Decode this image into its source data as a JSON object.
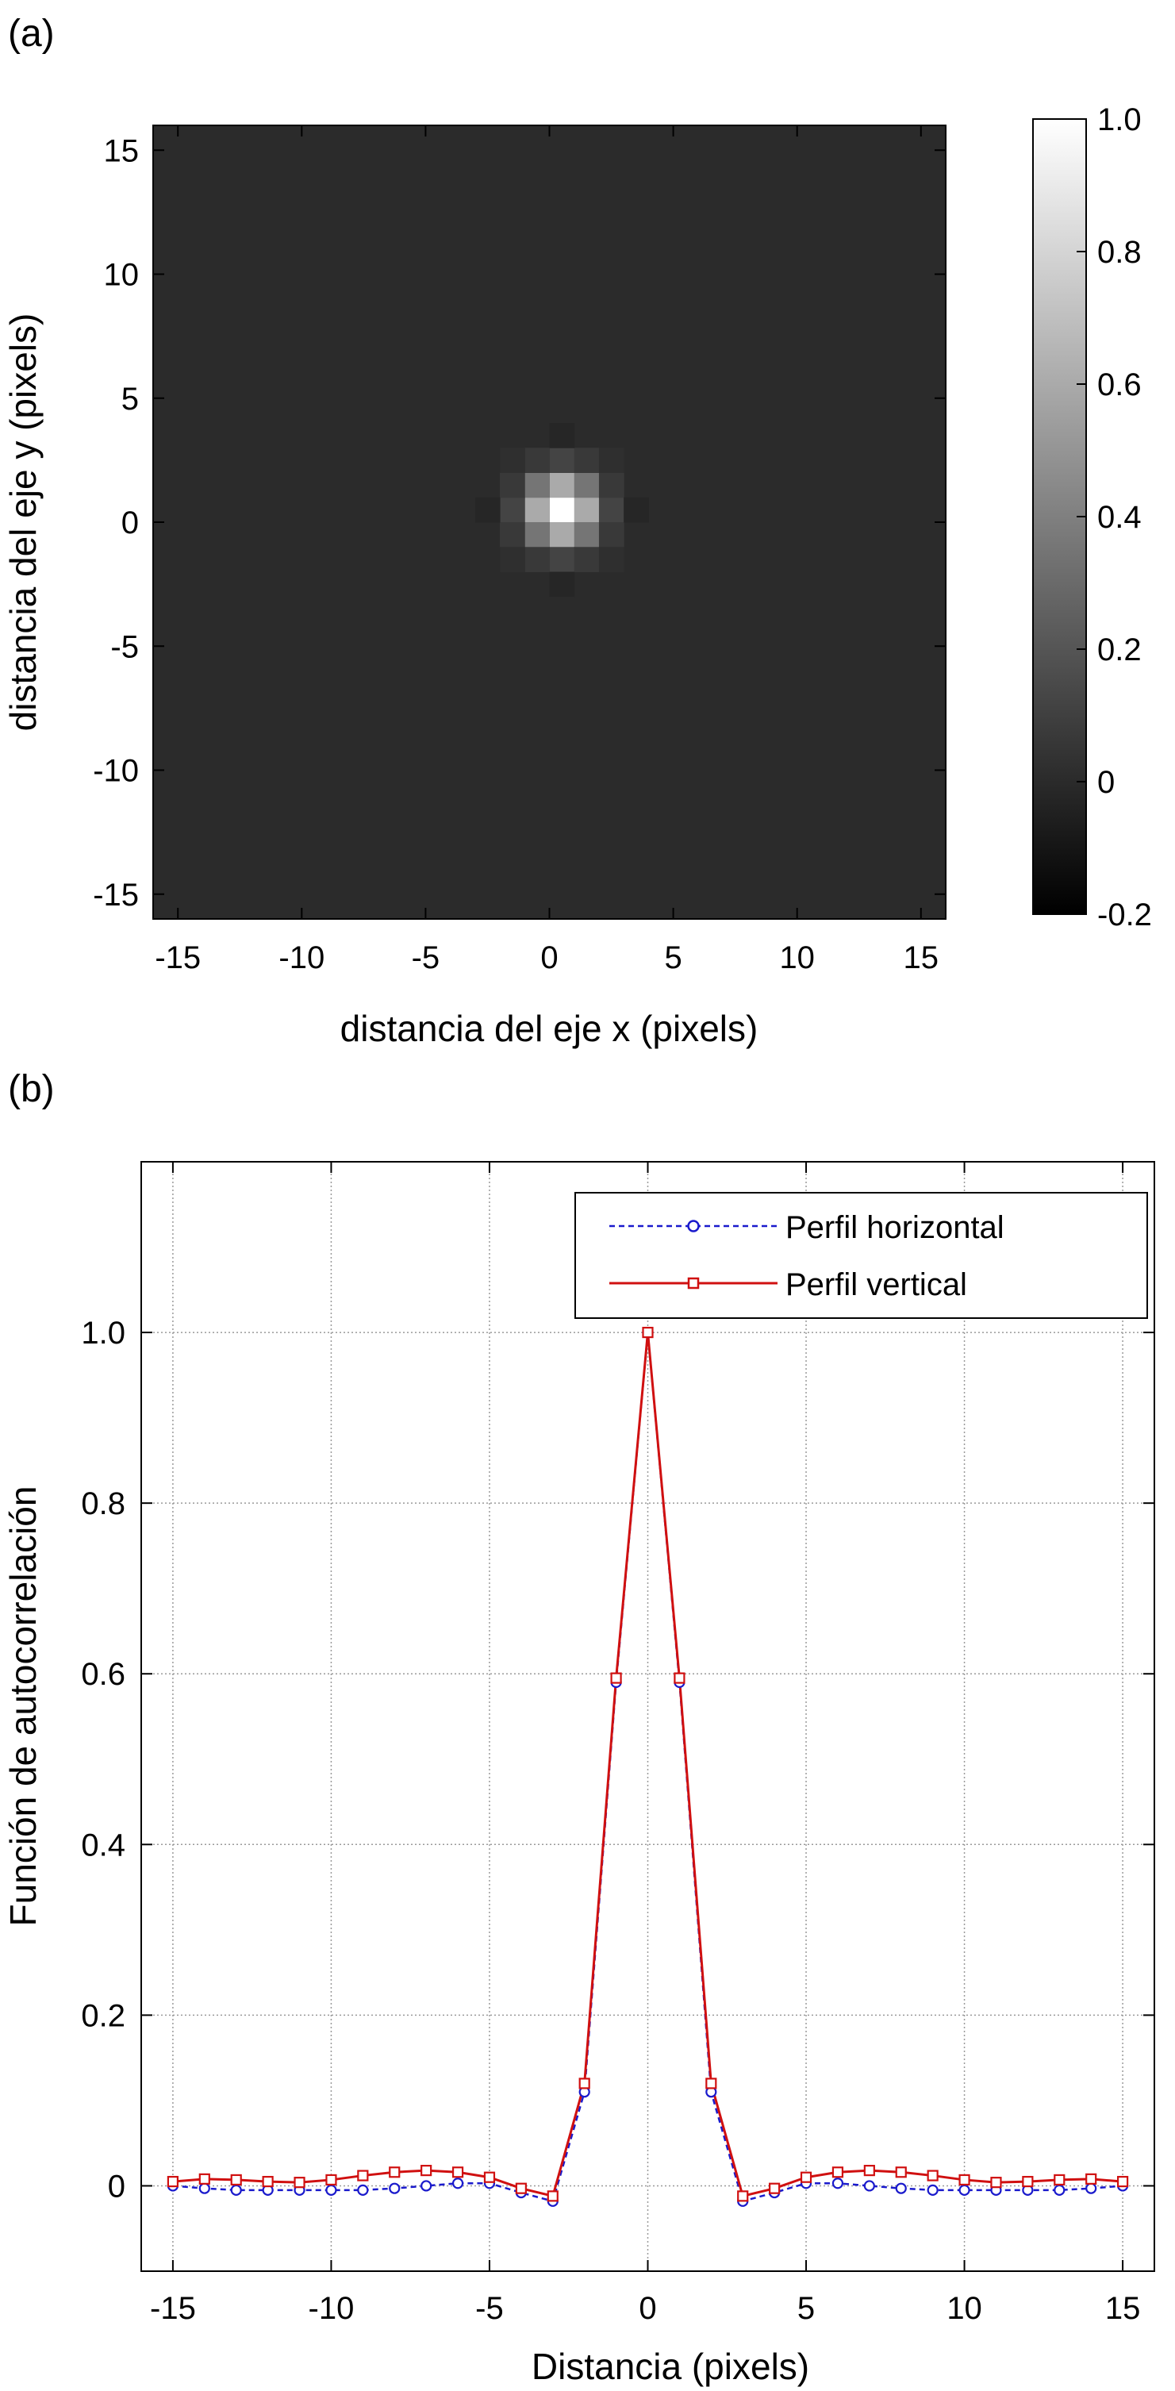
{
  "panel_a": {
    "label": "(a)",
    "xlabel": "distancia del eje x (pixels)",
    "ylabel": "distancia del eje y (pixels)",
    "xticks": [
      "-15",
      "-10",
      "-5",
      "0",
      "5",
      "10",
      "15"
    ],
    "yticks": [
      "15",
      "10",
      "5",
      "0",
      "-5",
      "-10",
      "-15"
    ],
    "colorbar_ticks": [
      "1.0",
      "0.8",
      "0.6",
      "0.4",
      "0.2",
      "0",
      "-0.2"
    ]
  },
  "panel_b": {
    "label": "(b)",
    "xlabel": "Distancia (pixels)",
    "ylabel": "Función de autocorrelación",
    "xticks": [
      "-15",
      "-10",
      "-5",
      "0",
      "5",
      "10",
      "15"
    ],
    "yticks": [
      "1.0",
      "0.8",
      "0.6",
      "0.4",
      "0.2",
      "0"
    ],
    "legend": [
      "Perfil horizontal",
      "Perfil vertical"
    ]
  },
  "chart_data": [
    {
      "type": "heatmap",
      "xlabel": "distancia del eje x (pixels)",
      "ylabel": "distancia del eje y (pixels)",
      "xlim": [
        -16,
        16
      ],
      "ylim": [
        -16,
        16
      ],
      "color_range": [
        -0.2,
        1.0
      ],
      "colormap": "gray",
      "background_value": 0.0,
      "center": [
        0.5,
        0.5
      ],
      "peak_cells": [
        {
          "x": 0.5,
          "y": 0.5,
          "v": 1.0
        },
        {
          "x": -0.5,
          "y": 0.5,
          "v": 0.6
        },
        {
          "x": 1.5,
          "y": 0.5,
          "v": 0.6
        },
        {
          "x": 0.5,
          "y": 1.5,
          "v": 0.6
        },
        {
          "x": 0.5,
          "y": -0.5,
          "v": 0.6
        },
        {
          "x": -0.5,
          "y": 1.5,
          "v": 0.35
        },
        {
          "x": 1.5,
          "y": 1.5,
          "v": 0.35
        },
        {
          "x": -0.5,
          "y": -0.5,
          "v": 0.35
        },
        {
          "x": 1.5,
          "y": -0.5,
          "v": 0.35
        },
        {
          "x": -1.5,
          "y": 0.5,
          "v": 0.12
        },
        {
          "x": 2.5,
          "y": 0.5,
          "v": 0.12
        },
        {
          "x": 0.5,
          "y": 2.5,
          "v": 0.12
        },
        {
          "x": 0.5,
          "y": -1.5,
          "v": 0.12
        },
        {
          "x": -1.5,
          "y": 1.5,
          "v": 0.07
        },
        {
          "x": 2.5,
          "y": 1.5,
          "v": 0.07
        },
        {
          "x": -1.5,
          "y": -0.5,
          "v": 0.07
        },
        {
          "x": 2.5,
          "y": -0.5,
          "v": 0.07
        },
        {
          "x": -0.5,
          "y": 2.5,
          "v": 0.07
        },
        {
          "x": 1.5,
          "y": 2.5,
          "v": 0.07
        },
        {
          "x": -0.5,
          "y": -1.5,
          "v": 0.07
        },
        {
          "x": 1.5,
          "y": -1.5,
          "v": 0.07
        },
        {
          "x": -2.5,
          "y": 0.5,
          "v": -0.02
        },
        {
          "x": 3.5,
          "y": 0.5,
          "v": -0.02
        },
        {
          "x": 0.5,
          "y": 3.5,
          "v": -0.02
        },
        {
          "x": 0.5,
          "y": -2.5,
          "v": -0.02
        },
        {
          "x": -1.5,
          "y": 2.5,
          "v": 0.02
        },
        {
          "x": 2.5,
          "y": 2.5,
          "v": 0.02
        },
        {
          "x": -1.5,
          "y": -1.5,
          "v": 0.02
        },
        {
          "x": 2.5,
          "y": -1.5,
          "v": 0.02
        }
      ]
    },
    {
      "type": "line",
      "xlabel": "Distancia (pixels)",
      "ylabel": "Función de autocorrelación",
      "xlim": [
        -16,
        16
      ],
      "ylim": [
        -0.1,
        1.2
      ],
      "grid": true,
      "legend_position": "top-right",
      "x": [
        -15,
        -14,
        -13,
        -12,
        -11,
        -10,
        -9,
        -8,
        -7,
        -6,
        -5,
        -4,
        -3,
        -2,
        -1,
        0,
        1,
        2,
        3,
        4,
        5,
        6,
        7,
        8,
        9,
        10,
        11,
        12,
        13,
        14,
        15
      ],
      "series": [
        {
          "name": "Perfil horizontal",
          "color": "#1a1acc",
          "style": "dashed",
          "marker": "circle",
          "values": [
            0.0,
            -0.003,
            -0.005,
            -0.005,
            -0.005,
            -0.005,
            -0.005,
            -0.003,
            0.0,
            0.003,
            0.003,
            -0.008,
            -0.018,
            0.11,
            0.59,
            1.0,
            0.59,
            0.11,
            -0.018,
            -0.008,
            0.003,
            0.003,
            0.0,
            -0.003,
            -0.005,
            -0.005,
            -0.005,
            -0.005,
            -0.005,
            -0.003,
            0.0
          ]
        },
        {
          "name": "Perfil vertical",
          "color": "#d01010",
          "style": "solid",
          "marker": "square",
          "values": [
            0.005,
            0.008,
            0.007,
            0.005,
            0.004,
            0.007,
            0.012,
            0.016,
            0.018,
            0.016,
            0.01,
            -0.003,
            -0.012,
            0.12,
            0.595,
            1.0,
            0.595,
            0.12,
            -0.012,
            -0.003,
            0.01,
            0.016,
            0.018,
            0.016,
            0.012,
            0.007,
            0.004,
            0.005,
            0.007,
            0.008,
            0.005
          ]
        }
      ]
    }
  ]
}
